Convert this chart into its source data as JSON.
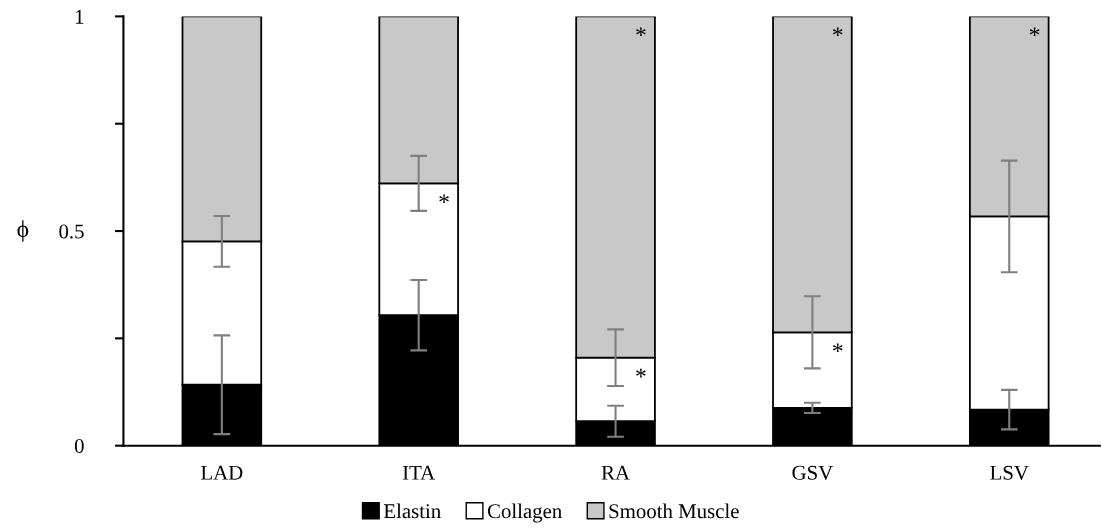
{
  "chart_data": {
    "type": "bar",
    "stacked": true,
    "ylabel": "ϕ",
    "categories": [
      "LAD",
      "ITA",
      "RA",
      "GSV",
      "LSV"
    ],
    "series": [
      {
        "name": "Elastin",
        "color": "#000000",
        "values": [
          0.142,
          0.304,
          0.057,
          0.088,
          0.084
        ],
        "errors": [
          0.115,
          0.082,
          0.036,
          0.012,
          0.046
        ]
      },
      {
        "name": "Collagen",
        "color": "#ffffff",
        "values": [
          0.334,
          0.307,
          0.148,
          0.176,
          0.45
        ],
        "errors": [
          0.059,
          0.064,
          0.066,
          0.084,
          0.13
        ]
      },
      {
        "name": "Smooth Muscle",
        "color": "#c8c8c8",
        "values": [
          0.524,
          0.389,
          0.795,
          0.736,
          0.466
        ]
      }
    ],
    "ylim": [
      0,
      1
    ],
    "yticks": [
      0,
      {
        "value": 0.25,
        "label": null
      },
      0.5,
      {
        "value": 0.75,
        "label": null
      },
      1
    ],
    "annotations": [
      {
        "text": "*",
        "x": "ITA",
        "y": 0.611
      },
      {
        "text": "*",
        "x": "RA",
        "y": 1
      },
      {
        "text": "*",
        "x": "RA",
        "y": 0.205
      },
      {
        "text": "*",
        "x": "GSV",
        "y": 1
      },
      {
        "text": "*",
        "x": "GSV",
        "y": 0.264
      },
      {
        "text": "*",
        "x": "LSV",
        "y": 1
      }
    ],
    "legend": "bottom",
    "grid": false
  }
}
